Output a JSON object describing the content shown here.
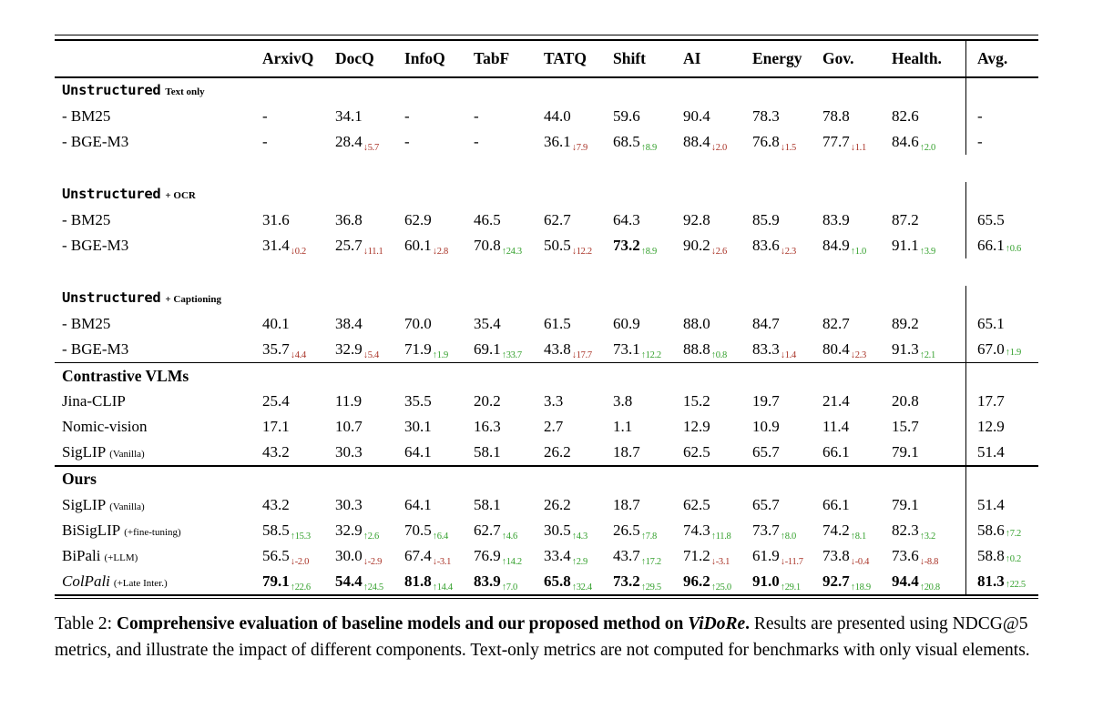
{
  "colors": {
    "up_green": "#33a02c",
    "down_red": "#a93226",
    "rule_black": "#000000"
  },
  "table": {
    "columns": [
      "ArxivQ",
      "DocQ",
      "InfoQ",
      "TabF",
      "TATQ",
      "Shift",
      "AI",
      "Energy",
      "Gov.",
      "Health.",
      "Avg."
    ],
    "groups": [
      {
        "name": "Unstructured",
        "name_style": "mono",
        "qualifier": "Text only",
        "gap_after": true,
        "rule_before": false,
        "rows": [
          {
            "label": "- BM25",
            "cells": [
              {
                "v": "-"
              },
              {
                "v": "34.1"
              },
              {
                "v": "-"
              },
              {
                "v": "-"
              },
              {
                "v": "44.0"
              },
              {
                "v": "59.6"
              },
              {
                "v": "90.4"
              },
              {
                "v": "78.3"
              },
              {
                "v": "78.8"
              },
              {
                "v": "82.6"
              },
              {
                "v": "-"
              }
            ]
          },
          {
            "label": "- BGE-M3",
            "cells": [
              {
                "v": "-"
              },
              {
                "v": "28.4",
                "delta": "5.7",
                "dir": "down"
              },
              {
                "v": "-"
              },
              {
                "v": "-"
              },
              {
                "v": "36.1",
                "delta": "7.9",
                "dir": "down"
              },
              {
                "v": "68.5",
                "delta": "8.9",
                "dir": "up"
              },
              {
                "v": "88.4",
                "delta": "2.0",
                "dir": "down"
              },
              {
                "v": "76.8",
                "delta": "1.5",
                "dir": "down"
              },
              {
                "v": "77.7",
                "delta": "1.1",
                "dir": "down"
              },
              {
                "v": "84.6",
                "delta": "2.0",
                "dir": "up"
              },
              {
                "v": "-"
              }
            ]
          }
        ]
      },
      {
        "name": "Unstructured",
        "name_style": "mono",
        "qualifier": "+ OCR",
        "gap_after": true,
        "rule_before": false,
        "rows": [
          {
            "label": "- BM25",
            "cells": [
              {
                "v": "31.6"
              },
              {
                "v": "36.8"
              },
              {
                "v": "62.9"
              },
              {
                "v": "46.5"
              },
              {
                "v": "62.7"
              },
              {
                "v": "64.3"
              },
              {
                "v": "92.8"
              },
              {
                "v": "85.9"
              },
              {
                "v": "83.9"
              },
              {
                "v": "87.2"
              },
              {
                "v": "65.5"
              }
            ]
          },
          {
            "label": "- BGE-M3",
            "cells": [
              {
                "v": "31.4",
                "delta": "0.2",
                "dir": "down"
              },
              {
                "v": "25.7",
                "delta": "11.1",
                "dir": "down"
              },
              {
                "v": "60.1",
                "delta": "2.8",
                "dir": "down"
              },
              {
                "v": "70.8",
                "delta": "24.3",
                "dir": "up"
              },
              {
                "v": "50.5",
                "delta": "12.2",
                "dir": "down"
              },
              {
                "v": "73.2",
                "bold": true,
                "delta": "8.9",
                "dir": "up"
              },
              {
                "v": "90.2",
                "delta": "2.6",
                "dir": "down"
              },
              {
                "v": "83.6",
                "delta": "2.3",
                "dir": "down"
              },
              {
                "v": "84.9",
                "delta": "1.0",
                "dir": "up"
              },
              {
                "v": "91.1",
                "delta": "3.9",
                "dir": "up"
              },
              {
                "v": "66.1",
                "delta": "0.6",
                "dir": "up"
              }
            ]
          }
        ]
      },
      {
        "name": "Unstructured",
        "name_style": "mono",
        "qualifier": "+ Captioning",
        "gap_after": false,
        "rule_before": false,
        "rows": [
          {
            "label": "- BM25",
            "cells": [
              {
                "v": "40.1"
              },
              {
                "v": "38.4"
              },
              {
                "v": "70.0"
              },
              {
                "v": "35.4"
              },
              {
                "v": "61.5"
              },
              {
                "v": "60.9"
              },
              {
                "v": "88.0"
              },
              {
                "v": "84.7"
              },
              {
                "v": "82.7"
              },
              {
                "v": "89.2"
              },
              {
                "v": "65.1"
              }
            ]
          },
          {
            "label": "- BGE-M3",
            "cells": [
              {
                "v": "35.7",
                "delta": "4.4",
                "dir": "down"
              },
              {
                "v": "32.9",
                "delta": "5.4",
                "dir": "down"
              },
              {
                "v": "71.9",
                "delta": "1.9",
                "dir": "up"
              },
              {
                "v": "69.1",
                "delta": "33.7",
                "dir": "up"
              },
              {
                "v": "43.8",
                "delta": "17.7",
                "dir": "down"
              },
              {
                "v": "73.1",
                "delta": "12.2",
                "dir": "up"
              },
              {
                "v": "88.8",
                "delta": "0.8",
                "dir": "up"
              },
              {
                "v": "83.3",
                "delta": "1.4",
                "dir": "down"
              },
              {
                "v": "80.4",
                "delta": "2.3",
                "dir": "down"
              },
              {
                "v": "91.3",
                "delta": "2.1",
                "dir": "up"
              },
              {
                "v": "67.0",
                "delta": "1.9",
                "dir": "up"
              }
            ]
          }
        ]
      },
      {
        "name": "Contrastive VLMs",
        "name_style": "serif",
        "qualifier": "",
        "gap_after": false,
        "rule_before": true,
        "rows": [
          {
            "label": "Jina-CLIP",
            "cells": [
              {
                "v": "25.4"
              },
              {
                "v": "11.9"
              },
              {
                "v": "35.5"
              },
              {
                "v": "20.2"
              },
              {
                "v": "3.3"
              },
              {
                "v": "3.8"
              },
              {
                "v": "15.2"
              },
              {
                "v": "19.7"
              },
              {
                "v": "21.4"
              },
              {
                "v": "20.8"
              },
              {
                "v": "17.7"
              }
            ]
          },
          {
            "label": "Nomic-vision",
            "cells": [
              {
                "v": "17.1"
              },
              {
                "v": "10.7"
              },
              {
                "v": "30.1"
              },
              {
                "v": "16.3"
              },
              {
                "v": "2.7"
              },
              {
                "v": "1.1"
              },
              {
                "v": "12.9"
              },
              {
                "v": "10.9"
              },
              {
                "v": "11.4"
              },
              {
                "v": "15.7"
              },
              {
                "v": "12.9"
              }
            ]
          },
          {
            "label": "SigLIP",
            "label_small": "(Vanilla)",
            "cells": [
              {
                "v": "43.2"
              },
              {
                "v": "30.3"
              },
              {
                "v": "64.1"
              },
              {
                "v": "58.1"
              },
              {
                "v": "26.2"
              },
              {
                "v": "18.7"
              },
              {
                "v": "62.5"
              },
              {
                "v": "65.7"
              },
              {
                "v": "66.1"
              },
              {
                "v": "79.1"
              },
              {
                "v": "51.4"
              }
            ]
          }
        ]
      },
      {
        "name": "Ours",
        "name_style": "serif",
        "qualifier": "",
        "gap_after": false,
        "rule_before": true,
        "rows": [
          {
            "label": "SigLIP",
            "label_small": "(Vanilla)",
            "cells": [
              {
                "v": "43.2"
              },
              {
                "v": "30.3"
              },
              {
                "v": "64.1"
              },
              {
                "v": "58.1"
              },
              {
                "v": "26.2"
              },
              {
                "v": "18.7"
              },
              {
                "v": "62.5"
              },
              {
                "v": "65.7"
              },
              {
                "v": "66.1"
              },
              {
                "v": "79.1"
              },
              {
                "v": "51.4"
              }
            ]
          },
          {
            "label": "BiSigLIP",
            "label_small": "(+fine-tuning)",
            "cells": [
              {
                "v": "58.5",
                "delta": "15.3",
                "dir": "up"
              },
              {
                "v": "32.9",
                "delta": "2.6",
                "dir": "up"
              },
              {
                "v": "70.5",
                "delta": "6.4",
                "dir": "up"
              },
              {
                "v": "62.7",
                "delta": "4.6",
                "dir": "up"
              },
              {
                "v": "30.5",
                "delta": "4.3",
                "dir": "up"
              },
              {
                "v": "26.5",
                "delta": "7.8",
                "dir": "up"
              },
              {
                "v": "74.3",
                "delta": "11.8",
                "dir": "up"
              },
              {
                "v": "73.7",
                "delta": "8.0",
                "dir": "up"
              },
              {
                "v": "74.2",
                "delta": "8.1",
                "dir": "up"
              },
              {
                "v": "82.3",
                "delta": "3.2",
                "dir": "up"
              },
              {
                "v": "58.6",
                "delta": "7.2",
                "dir": "up"
              }
            ]
          },
          {
            "label": "BiPali",
            "label_small": "(+LLM)",
            "cells": [
              {
                "v": "56.5",
                "delta": "-2.0",
                "dir": "down"
              },
              {
                "v": "30.0",
                "delta": "-2.9",
                "dir": "down"
              },
              {
                "v": "67.4",
                "delta": "-3.1",
                "dir": "down"
              },
              {
                "v": "76.9",
                "delta": "14.2",
                "dir": "up"
              },
              {
                "v": "33.4",
                "delta": "2.9",
                "dir": "up"
              },
              {
                "v": "43.7",
                "delta": "17.2",
                "dir": "up"
              },
              {
                "v": "71.2",
                "delta": "-3.1",
                "dir": "down"
              },
              {
                "v": "61.9",
                "delta": "-11.7",
                "dir": "down"
              },
              {
                "v": "73.8",
                "delta": "-0.4",
                "dir": "down"
              },
              {
                "v": "73.6",
                "delta": "-8.8",
                "dir": "down"
              },
              {
                "v": "58.8",
                "delta": "0.2",
                "dir": "up"
              }
            ]
          },
          {
            "label": "ColPali",
            "label_small": "(+Late Inter.)",
            "label_italic": true,
            "bold_row": true,
            "cells": [
              {
                "v": "79.1",
                "delta": "22.6",
                "dir": "up"
              },
              {
                "v": "54.4",
                "delta": "24.5",
                "dir": "up"
              },
              {
                "v": "81.8",
                "delta": "14.4",
                "dir": "up"
              },
              {
                "v": "83.9",
                "delta": "7.0",
                "dir": "up"
              },
              {
                "v": "65.8",
                "delta": "32.4",
                "dir": "up"
              },
              {
                "v": "73.2",
                "delta": "29.5",
                "dir": "up"
              },
              {
                "v": "96.2",
                "delta": "25.0",
                "dir": "up"
              },
              {
                "v": "91.0",
                "delta": "29.1",
                "dir": "up"
              },
              {
                "v": "92.7",
                "delta": "18.9",
                "dir": "up"
              },
              {
                "v": "94.4",
                "delta": "20.8",
                "dir": "up"
              },
              {
                "v": "81.3",
                "delta": "22.5",
                "dir": "up"
              }
            ]
          }
        ]
      }
    ]
  },
  "caption": {
    "prefix": "Table 2: ",
    "bold_main": "Comprehensive evaluation of baseline models and our proposed method on ",
    "bold_italic": "ViDoRe",
    "bold_period": ". ",
    "rest": "Results are presented using NDCG@5 metrics, and illustrate the impact of different components. Text-only metrics are not computed for benchmarks with only visual elements."
  }
}
